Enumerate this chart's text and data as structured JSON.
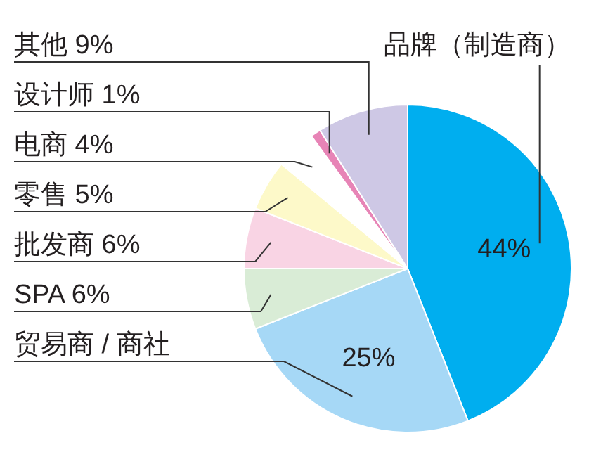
{
  "chart_data": {
    "type": "pie",
    "categories": [
      "品牌（制造商）",
      "贸易商 / 商社",
      "SPA",
      "批发商",
      "零售",
      "电商",
      "设计师",
      "其他"
    ],
    "values": [
      44,
      25,
      6,
      6,
      5,
      4,
      1,
      9
    ],
    "value_labels": [
      "44%",
      "25%",
      "6%",
      "6%",
      "5%",
      "4%",
      "1%",
      "9%"
    ],
    "colors": [
      "#00aeef",
      "#a6d8f6",
      "#d9ecd6",
      "#f9d4e4",
      "#fdf9c9",
      "#ffffff",
      "#e784b6",
      "#cec8e5"
    ],
    "legend": false
  }
}
